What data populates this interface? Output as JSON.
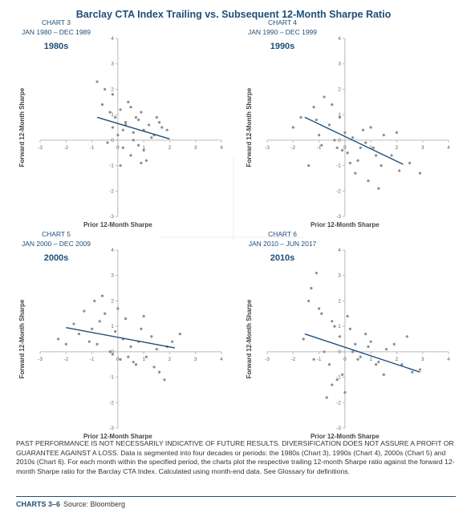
{
  "header": {
    "title": "Barclay CTA Index Trailing vs. Subsequent 12-Month Sharpe Ratio"
  },
  "chart_data": [
    {
      "type": "scatter",
      "chart_label": "CHART 3",
      "period": "JAN 1980 – DEC 1989",
      "decade": "1980s",
      "x_label": "Prior 12-Month Sharpe",
      "y_label": "Forward 12-Month Sharpe",
      "xlim": [
        -3,
        4
      ],
      "ylim": [
        -3,
        4
      ],
      "xticks": [
        -3,
        -2,
        -1,
        0,
        1,
        2,
        3,
        4
      ],
      "yticks": [
        -3,
        -2,
        -1,
        0,
        1,
        2,
        3,
        4
      ],
      "color": "#8c8c8c",
      "x": [
        -0.8,
        -0.6,
        -0.5,
        -0.3,
        -0.2,
        -0.1,
        0,
        0.1,
        0.2,
        0.3,
        0.4,
        0.5,
        0.6,
        0.7,
        0.8,
        0.9,
        1,
        1.1,
        1.2,
        1.3,
        1.5,
        1.7,
        1.9,
        -0.4,
        0.1,
        0.3,
        0.5,
        0.8,
        1.0,
        1.4,
        -0.2,
        0.6,
        0.2,
        0.9,
        1.6
      ],
      "y": [
        2.3,
        1.4,
        2.0,
        1.1,
        0.5,
        0.9,
        0.2,
        1.2,
        -0.3,
        0.7,
        1.5,
        -0.6,
        0.3,
        0.9,
        -0.2,
        1.1,
        0.4,
        -0.8,
        0.6,
        0.1,
        0.9,
        0.5,
        0.4,
        -0.1,
        -1.0,
        0.6,
        1.3,
        0.8,
        -0.4,
        0.2,
        1.8,
        0.0,
        0.4,
        -0.9,
        0.7
      ],
      "trendline": {
        "color": "#1f4e79",
        "x": [
          -0.8,
          2
        ],
        "y": [
          0.9,
          0.05
        ]
      }
    },
    {
      "type": "scatter",
      "chart_label": "CHART 4",
      "period": "JAN 1990 – DEC 1999",
      "decade": "1990s",
      "x_label": "Prior 12-Month Sharpe",
      "y_label": "Forward 12-Month Sharpe",
      "xlim": [
        -3,
        4
      ],
      "ylim": [
        -3,
        4
      ],
      "xticks": [
        -3,
        -2,
        -1,
        0,
        1,
        2,
        3,
        4
      ],
      "yticks": [
        -3,
        -2,
        -1,
        0,
        1,
        2,
        3,
        4
      ],
      "color": "#8c8c8c",
      "x": [
        -2.0,
        -1.7,
        -1.4,
        -1.2,
        -1.0,
        -0.8,
        -0.6,
        -0.5,
        -0.3,
        -0.2,
        0,
        0.1,
        0.3,
        0.5,
        0.7,
        0.9,
        1.1,
        1.3,
        1.5,
        1.8,
        2.1,
        2.5,
        2.9,
        -0.9,
        -0.4,
        0.2,
        0.6,
        1.0,
        1.4,
        -1.1,
        -0.1,
        0.4,
        0.8,
        1.2,
        2.0
      ],
      "y": [
        0.5,
        0.9,
        -1.0,
        1.3,
        0.2,
        1.7,
        0.6,
        1.4,
        -0.3,
        0.9,
        0.3,
        -0.5,
        0.1,
        -0.8,
        0.4,
        -1.6,
        -0.3,
        -1.9,
        0.2,
        -0.6,
        -1.2,
        -0.9,
        -1.3,
        -0.2,
        0.0,
        -0.9,
        -0.3,
        0.5,
        -1.0,
        0.8,
        -0.4,
        -1.3,
        -0.1,
        -0.6,
        0.3
      ],
      "trendline": {
        "color": "#1f4e79",
        "x": [
          -1.55,
          2.25
        ],
        "y": [
          0.9,
          -0.95
        ]
      }
    },
    {
      "type": "scatter",
      "chart_label": "CHART 5",
      "period": "JAN 2000 – DEC 2009",
      "decade": "2000s",
      "x_label": "Prior 12-Month Sharpe",
      "y_label": "Forward 12-Month Sharpe",
      "xlim": [
        -3,
        4
      ],
      "ylim": [
        -3,
        4
      ],
      "xticks": [
        -3,
        -2,
        -1,
        0,
        1,
        2,
        3,
        4
      ],
      "yticks": [
        -3,
        -2,
        -1,
        0,
        1,
        2,
        3,
        4
      ],
      "color": "#8c8c8c",
      "x": [
        -2.3,
        -2.0,
        -1.7,
        -1.5,
        -1.3,
        -1.1,
        -0.9,
        -0.7,
        -0.5,
        -0.3,
        -0.1,
        0.1,
        0.3,
        0.5,
        0.7,
        0.9,
        1.1,
        1.3,
        1.5,
        1.8,
        2.1,
        2.4,
        -1.0,
        -0.6,
        -0.2,
        0.2,
        0.6,
        1.0,
        1.4,
        -0.8,
        0.0,
        0.4,
        0.8,
        1.6,
        1.9
      ],
      "y": [
        0.5,
        0.3,
        1.1,
        0.7,
        1.6,
        0.4,
        2.0,
        1.2,
        1.5,
        0.0,
        0.8,
        -0.3,
        1.3,
        0.2,
        -0.5,
        0.9,
        -0.2,
        0.6,
        0.1,
        -1.1,
        0.4,
        0.7,
        0.9,
        2.2,
        -0.1,
        0.5,
        -0.4,
        1.4,
        -0.6,
        0.3,
        1.7,
        -0.2,
        0.4,
        -0.8,
        0.2
      ],
      "trendline": {
        "color": "#1f4e79",
        "x": [
          -2,
          2.2
        ],
        "y": [
          0.95,
          0.15
        ]
      }
    },
    {
      "type": "scatter",
      "chart_label": "CHART 6",
      "period": "JAN 2010 – JUN 2017",
      "decade": "2010s",
      "x_label": "Prior 12-Month Sharpe",
      "y_label": "Forward 12-Month Sharpe",
      "xlim": [
        -3,
        4
      ],
      "ylim": [
        -3,
        4
      ],
      "xticks": [
        -3,
        -2,
        -1,
        0,
        1,
        2,
        3,
        4
      ],
      "yticks": [
        -3,
        -2,
        -1,
        0,
        1,
        2,
        3,
        4
      ],
      "color": "#8c8c8c",
      "x": [
        -1.6,
        -1.4,
        -1.3,
        -1.1,
        -0.9,
        -0.8,
        -0.6,
        -0.5,
        -0.3,
        -0.2,
        0,
        0.2,
        0.4,
        0.6,
        0.8,
        1.0,
        1.3,
        1.6,
        1.9,
        2.2,
        2.6,
        2.9,
        -1.2,
        -0.7,
        -0.4,
        -0.1,
        0.1,
        0.5,
        0.9,
        1.2,
        -1.0,
        -0.5,
        0.3,
        1.5,
        2.4
      ],
      "y": [
        0.5,
        2.0,
        2.5,
        3.1,
        1.5,
        0.0,
        -0.5,
        1.2,
        -1.1,
        0.6,
        -1.6,
        0.9,
        0.3,
        -0.2,
        0.7,
        0.4,
        -0.4,
        0.1,
        0.3,
        -0.5,
        -0.8,
        -0.7,
        -0.3,
        -1.8,
        1.0,
        -0.9,
        1.4,
        -0.3,
        0.2,
        -0.5,
        1.7,
        -1.3,
        0.0,
        -0.9,
        0.6
      ],
      "trendline": {
        "color": "#1f4e79",
        "x": [
          -1.55,
          2.9
        ],
        "y": [
          0.7,
          -0.8
        ]
      }
    }
  ],
  "note": "PAST PERFORMANCE IS NOT NECESSARILY INDICATIVE OF FUTURE RESULTS. DIVERSIFICATION DOES NOT ASSURE A PROFIT OR GUARANTEE AGAINST A LOSS. Data is segmented into four decades or periods: the 1980s (Chart 3), 1990s (Chart 4), 2000s (Chart 5) and 2010s (Chart 6). For each month within the specified period, the charts plot the respective trailing 12-month Sharpe ratio against the forward 12-month Sharpe ratio for the Barclay CTA Index. Calculated using month-end data. See Glossary for definitions.",
  "footer": {
    "label": "CHARTS 3–6",
    "source": "Source: Bloomberg"
  }
}
